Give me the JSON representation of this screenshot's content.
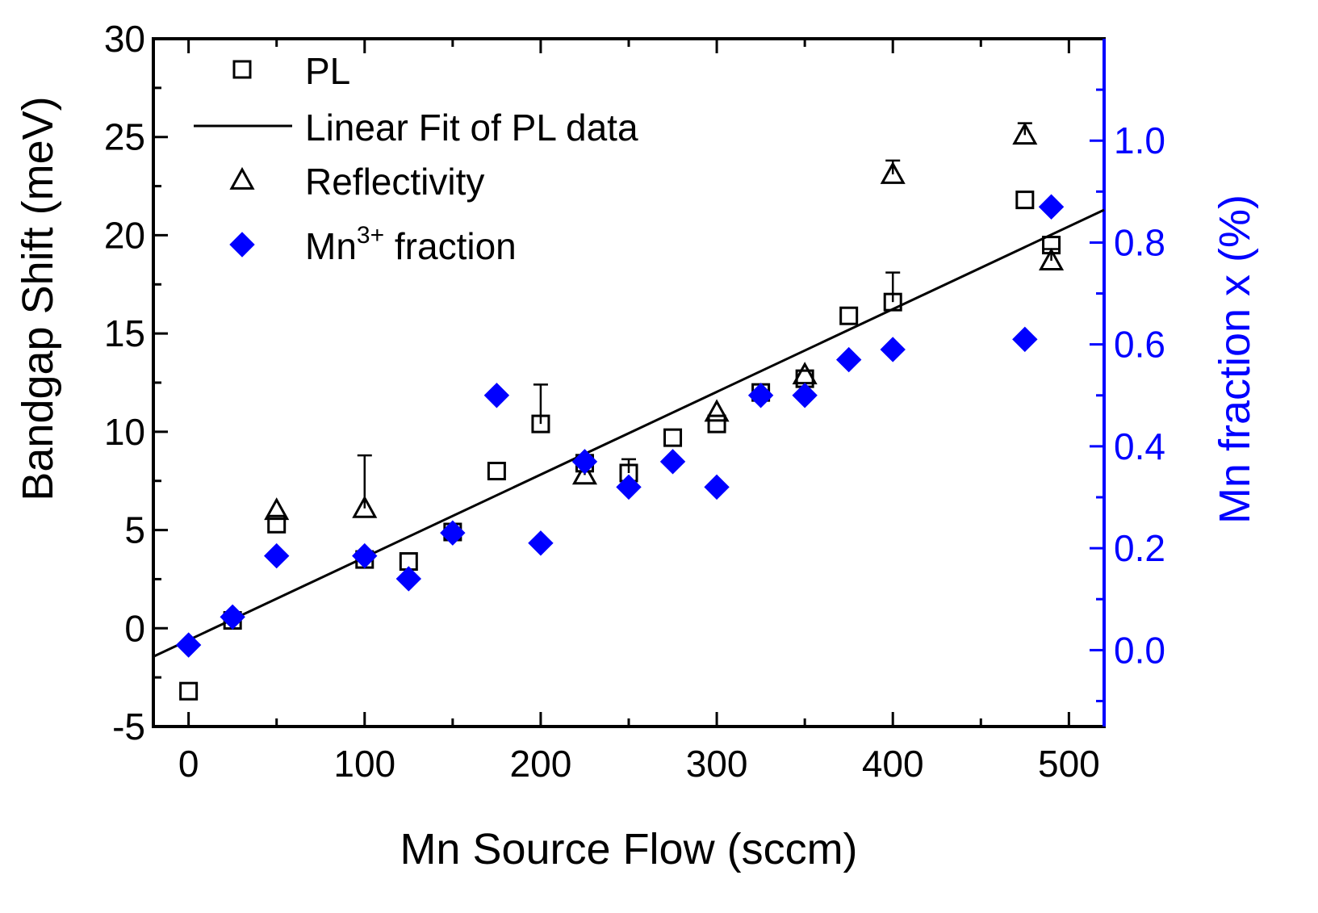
{
  "chart_data": {
    "type": "scatter",
    "xlabel": "Mn Source Flow (sccm)",
    "ylabel": "Bandgap Shift (meV)",
    "y2label": "Mn fraction x (%)",
    "xlim": [
      -20,
      520
    ],
    "ylim": [
      -5,
      30
    ],
    "y2lim": [
      -0.15,
      1.2
    ],
    "x_ticks": [
      0,
      100,
      200,
      300,
      400,
      500
    ],
    "y_ticks": [
      -5,
      0,
      5,
      10,
      15,
      20,
      25,
      30
    ],
    "y2_ticks": [
      0.0,
      0.2,
      0.4,
      0.6,
      0.8,
      1.0
    ],
    "x_tick_labels": [
      "0",
      "100",
      "200",
      "300",
      "400",
      "500"
    ],
    "y_tick_labels": [
      "-5",
      "0",
      "5",
      "10",
      "15",
      "20",
      "25",
      "30"
    ],
    "y2_tick_labels": [
      "0.0",
      "0.2",
      "0.4",
      "0.6",
      "0.8",
      "1.0"
    ],
    "legend": {
      "position": "top-left",
      "entries": [
        {
          "label": "PL",
          "marker": "open-square"
        },
        {
          "label": "Linear Fit of PL data",
          "marker": "line"
        },
        {
          "label": "Reflectivity",
          "marker": "open-triangle"
        },
        {
          "label": "Mn",
          "superscript": "3+",
          "suffix": " fraction",
          "marker": "filled-diamond"
        }
      ]
    },
    "colors": {
      "primary": "#000000",
      "secondary_axis": "#0000ff",
      "mn3_marker": "#0000ff"
    },
    "series": [
      {
        "name": "PL",
        "axis": "left",
        "marker": "open-square",
        "points": [
          {
            "x": 0,
            "y": -3.2
          },
          {
            "x": 25,
            "y": 0.4
          },
          {
            "x": 50,
            "y": 5.3
          },
          {
            "x": 100,
            "y": 3.5
          },
          {
            "x": 125,
            "y": 3.4
          },
          {
            "x": 150,
            "y": 4.9
          },
          {
            "x": 175,
            "y": 8.0
          },
          {
            "x": 200,
            "y": 10.4,
            "err": 2.0
          },
          {
            "x": 225,
            "y": 8.4
          },
          {
            "x": 250,
            "y": 7.9,
            "err": 0.7
          },
          {
            "x": 275,
            "y": 9.7
          },
          {
            "x": 300,
            "y": 10.4
          },
          {
            "x": 325,
            "y": 12.0
          },
          {
            "x": 350,
            "y": 12.7
          },
          {
            "x": 375,
            "y": 15.9
          },
          {
            "x": 400,
            "y": 16.6,
            "err": 1.5
          },
          {
            "x": 475,
            "y": 21.8
          },
          {
            "x": 490,
            "y": 19.5
          }
        ]
      },
      {
        "name": "Linear Fit of PL data",
        "axis": "left",
        "marker": "line",
        "intercept": -0.6,
        "slope": 0.0421
      },
      {
        "name": "Reflectivity",
        "axis": "left",
        "marker": "open-triangle",
        "points": [
          {
            "x": 50,
            "y": 6.0
          },
          {
            "x": 100,
            "y": 6.1,
            "err": 2.7
          },
          {
            "x": 225,
            "y": 7.8,
            "err": 0.8
          },
          {
            "x": 300,
            "y": 11.0
          },
          {
            "x": 350,
            "y": 12.9
          },
          {
            "x": 400,
            "y": 23.1,
            "err": 0.7
          },
          {
            "x": 475,
            "y": 25.1,
            "err": 0.6
          },
          {
            "x": 490,
            "y": 18.7,
            "err": 0.6
          }
        ]
      },
      {
        "name": "Mn3+ fraction",
        "axis": "right",
        "marker": "filled-diamond",
        "points": [
          {
            "x": 0,
            "y": 0.01
          },
          {
            "x": 25,
            "y": 0.065
          },
          {
            "x": 50,
            "y": 0.185
          },
          {
            "x": 100,
            "y": 0.185
          },
          {
            "x": 125,
            "y": 0.14
          },
          {
            "x": 150,
            "y": 0.23
          },
          {
            "x": 175,
            "y": 0.5
          },
          {
            "x": 200,
            "y": 0.21
          },
          {
            "x": 225,
            "y": 0.37
          },
          {
            "x": 250,
            "y": 0.32
          },
          {
            "x": 275,
            "y": 0.37
          },
          {
            "x": 300,
            "y": 0.32
          },
          {
            "x": 325,
            "y": 0.5
          },
          {
            "x": 350,
            "y": 0.5
          },
          {
            "x": 375,
            "y": 0.57
          },
          {
            "x": 400,
            "y": 0.59
          },
          {
            "x": 475,
            "y": 0.61
          },
          {
            "x": 490,
            "y": 0.87
          }
        ]
      }
    ]
  }
}
